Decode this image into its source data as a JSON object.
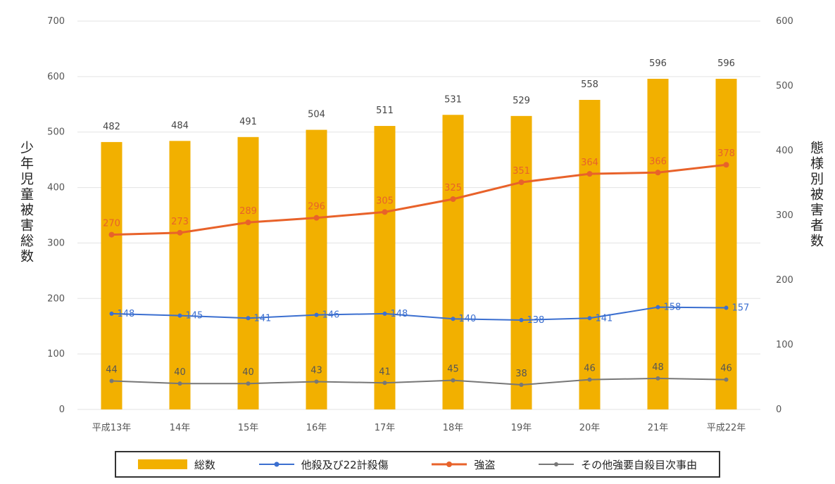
{
  "chart_data": {
    "type": "bar+line",
    "categories": [
      "平成13年",
      "14年",
      "15年",
      "16年",
      "17年",
      "18年",
      "19年",
      "20年",
      "21年",
      "平成22年"
    ],
    "series": [
      {
        "name": "総数",
        "kind": "bar",
        "axis": "left",
        "color": "#f2b000",
        "values": [
          482,
          484,
          491,
          504,
          511,
          531,
          529,
          558,
          596,
          596
        ]
      },
      {
        "name": "他殺及び22計殺傷",
        "kind": "line",
        "axis": "right",
        "color": "#3b6fd0",
        "values": [
          148,
          145,
          141,
          146,
          148,
          140,
          138,
          141,
          158,
          157
        ]
      },
      {
        "name": "強盗",
        "kind": "line",
        "axis": "right",
        "color": "#e8622a",
        "values": [
          270,
          273,
          289,
          296,
          305,
          325,
          351,
          364,
          366,
          378
        ]
      },
      {
        "name": "その他強要自殺目次事由",
        "kind": "line",
        "axis": "right",
        "color": "#777777",
        "values": [
          44,
          40,
          40,
          43,
          41,
          45,
          38,
          46,
          48,
          46
        ]
      }
    ],
    "bar_labels": [
      "482",
      "484",
      "491",
      "504",
      "511",
      "531",
      "529",
      "558",
      "596",
      "596"
    ],
    "red_labels": [
      "270",
      "273",
      "289",
      "296",
      "305",
      "325",
      "351",
      "364",
      "366",
      "378"
    ],
    "blue_labels": [
      "148",
      "145",
      "141",
      "146",
      "148",
      "140",
      "138",
      "141",
      "158",
      "157"
    ],
    "grey_labels": [
      "44",
      "40",
      "40",
      "43",
      "41",
      "45",
      "38",
      "46",
      "48",
      "46"
    ],
    "left_axis": {
      "ylim": [
        0,
        700
      ],
      "ticks": [
        "0",
        "100",
        "200",
        "300",
        "400",
        "500",
        "600",
        "700"
      ]
    },
    "right_axis": {
      "ylim": [
        0,
        600
      ],
      "ticks": [
        "0",
        "100",
        "200",
        "300",
        "400",
        "500",
        "600"
      ]
    },
    "left_title": "少年児童被害総数",
    "right_title": "態様別被害者数",
    "grid": true,
    "legend_position": "bottom"
  }
}
